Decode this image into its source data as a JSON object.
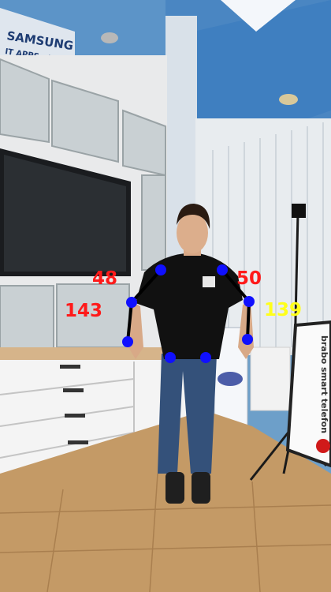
{
  "brand": {
    "logo_text": "SAMSUNG",
    "lab_text": "IT APPS - LAB"
  },
  "banner": {
    "text": "brabo smart telefon"
  },
  "colors": {
    "joint": "#1010ff",
    "limb": "#000000",
    "elbow_angle": "#ff1a1a",
    "shoulder_angle": "#ffff1a"
  },
  "pose": {
    "angles": [
      {
        "id": "left-elbow",
        "value": "48"
      },
      {
        "id": "right-elbow",
        "value": "50"
      },
      {
        "id": "left-shoulder",
        "value": "143"
      },
      {
        "id": "right-shoulder",
        "value": "139"
      }
    ]
  }
}
